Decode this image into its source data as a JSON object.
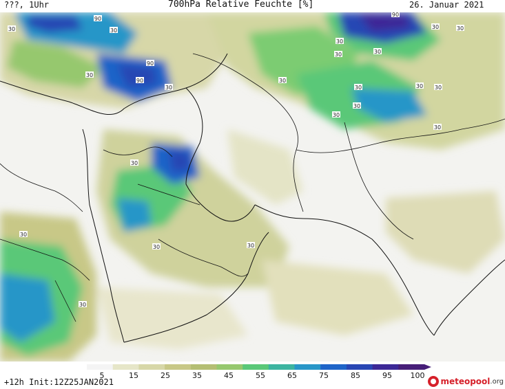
{
  "header": {
    "left": "???, 1Uhr",
    "title": "700hPa Relative Feuchte [%]",
    "date": "26. Januar 2021"
  },
  "footer": {
    "run_info": "+12h Init:12Z25JAN2021",
    "logo_brand": "meteopool",
    "logo_tld": ".org"
  },
  "colorbar": {
    "tick_labels": [
      "5",
      "15",
      "25",
      "35",
      "45",
      "55",
      "65",
      "75",
      "85",
      "95",
      "100"
    ],
    "colors": [
      "#f4f4f4",
      "#e6e6c8",
      "#d7d7a8",
      "#c8c887",
      "#b4be73",
      "#96c86e",
      "#5ac878",
      "#3cb4a0",
      "#2896c8",
      "#1e64c8",
      "#2846b4",
      "#3c2896",
      "#461e78"
    ]
  },
  "map_labels": [
    {
      "text": "90"
    },
    {
      "text": "30"
    },
    {
      "text": "90"
    },
    {
      "text": "90"
    },
    {
      "text": "30"
    },
    {
      "text": "30"
    },
    {
      "text": "30"
    },
    {
      "text": "30"
    },
    {
      "text": "30"
    },
    {
      "text": "30"
    },
    {
      "text": "30"
    },
    {
      "text": "30"
    },
    {
      "text": "30"
    },
    {
      "text": "30"
    },
    {
      "text": "30"
    },
    {
      "text": "30"
    },
    {
      "text": "30"
    },
    {
      "text": "30"
    },
    {
      "text": "30"
    },
    {
      "text": "30"
    },
    {
      "text": "30"
    },
    {
      "text": "30"
    },
    {
      "text": "90"
    },
    {
      "text": "30"
    },
    {
      "text": "30"
    }
  ]
}
